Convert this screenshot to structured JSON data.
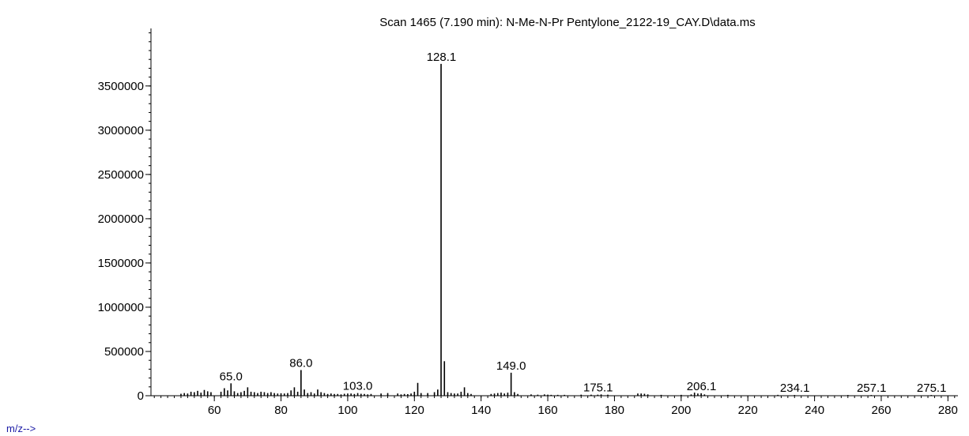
{
  "chart_data": {
    "type": "bar",
    "title": "Scan 1465 (7.190 min): N-Me-N-Pr Pentylone_2122-19_CAY.D\\data.ms",
    "xlabel": "m/z-->",
    "ylabel": "",
    "xlim": [
      41,
      283
    ],
    "ylim": [
      0,
      4150000
    ],
    "x_ticks": [
      60,
      80,
      100,
      120,
      140,
      160,
      180,
      200,
      220,
      240,
      260,
      280
    ],
    "y_ticks": [
      0,
      500000,
      1000000,
      1500000,
      2000000,
      2500000,
      3000000,
      3500000
    ],
    "grid": false,
    "legend": "none",
    "line_color": "#000000",
    "series": [
      {
        "mz": [
          50,
          51,
          52,
          53,
          54,
          55,
          56,
          57,
          58,
          59,
          62,
          63,
          64,
          65,
          66,
          67,
          68,
          69,
          70,
          71,
          72,
          73,
          74,
          75,
          76,
          77,
          78,
          79,
          80,
          81,
          82,
          83,
          84,
          85,
          86,
          87,
          88,
          89,
          90,
          91,
          92,
          93,
          94,
          95,
          96,
          97,
          98,
          99,
          100,
          101,
          102,
          103,
          104,
          105,
          106,
          107,
          110,
          112,
          115,
          116,
          117,
          118,
          119,
          120,
          121,
          122,
          124,
          126,
          127,
          128,
          129,
          130,
          131,
          132,
          133,
          134,
          135,
          136,
          137,
          143,
          144,
          145,
          146,
          147,
          148,
          149,
          150,
          151,
          155,
          157,
          159,
          160,
          161,
          163,
          165,
          170,
          173,
          175,
          176,
          178,
          187,
          188,
          189,
          190,
          194,
          200,
          203,
          204,
          205,
          206,
          207,
          214,
          229,
          234,
          250,
          257,
          275
        ],
        "intensity": [
          22000,
          30000,
          25000,
          45000,
          40000,
          55000,
          35000,
          65000,
          50000,
          40000,
          45000,
          85000,
          60000,
          140000,
          50000,
          30000,
          40000,
          55000,
          95000,
          45000,
          40000,
          30000,
          45000,
          40000,
          30000,
          40000,
          30000,
          25000,
          28000,
          25000,
          30000,
          60000,
          95000,
          45000,
          290000,
          70000,
          30000,
          40000,
          25000,
          70000,
          40000,
          30000,
          20000,
          25000,
          20000,
          20000,
          15000,
          22000,
          25000,
          25000,
          20000,
          30000,
          22000,
          20000,
          15000,
          20000,
          25000,
          30000,
          25000,
          15000,
          20000,
          18000,
          25000,
          45000,
          145000,
          30000,
          30000,
          40000,
          70000,
          3750000,
          390000,
          40000,
          30000,
          25000,
          25000,
          45000,
          95000,
          30000,
          20000,
          20000,
          25000,
          30000,
          35000,
          25000,
          35000,
          260000,
          40000,
          20000,
          15000,
          12000,
          15000,
          12000,
          10000,
          10000,
          10000,
          12000,
          12000,
          12000,
          15000,
          12000,
          25000,
          25000,
          22000,
          15000,
          10000,
          10000,
          15000,
          35000,
          25000,
          28000,
          15000,
          10000,
          10000,
          8000,
          8000,
          8000,
          8000
        ]
      }
    ],
    "annotations": [
      {
        "text": "65.0",
        "mz": 65.0,
        "intensity": 140000
      },
      {
        "text": "86.0",
        "mz": 86.0,
        "intensity": 290000
      },
      {
        "text": "103.0",
        "mz": 103.0,
        "intensity": 30000
      },
      {
        "text": "128.1",
        "mz": 128.1,
        "intensity": 3750000
      },
      {
        "text": "149.0",
        "mz": 149.0,
        "intensity": 260000
      },
      {
        "text": "175.1",
        "mz": 175.1,
        "intensity": 12000
      },
      {
        "text": "206.1",
        "mz": 206.1,
        "intensity": 25000
      },
      {
        "text": "234.1",
        "mz": 234.1,
        "intensity": 8000
      },
      {
        "text": "257.1",
        "mz": 257.1,
        "intensity": 8000
      },
      {
        "text": "275.1",
        "mz": 275.1,
        "intensity": 8000
      }
    ]
  }
}
